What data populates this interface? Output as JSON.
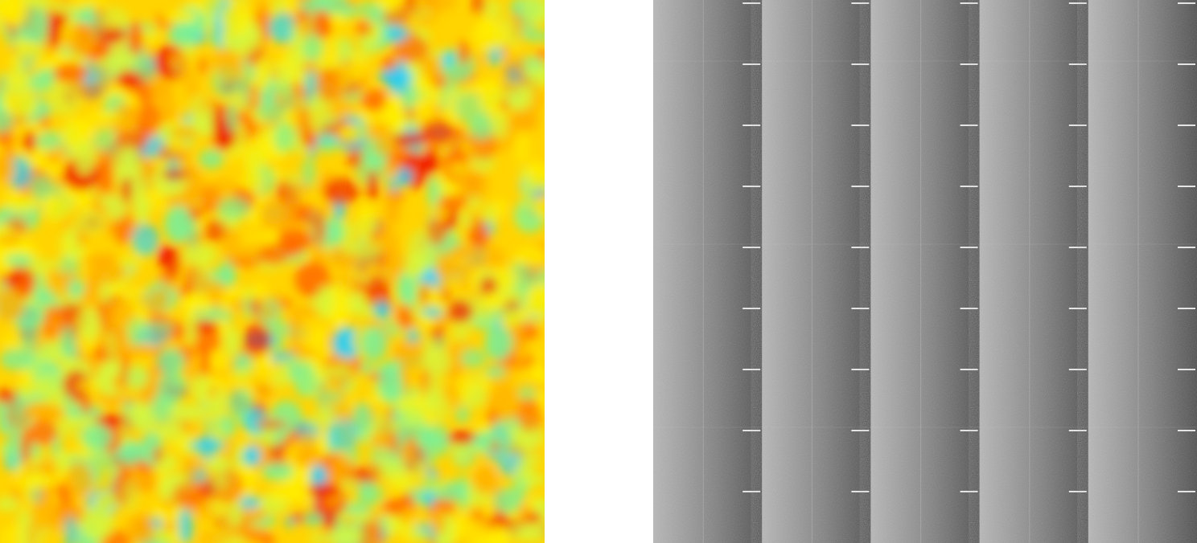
{
  "scene": {
    "left_image": {
      "kind": "heatmap",
      "colormap": [
        "#21d0ff",
        "#79f09a",
        "#d7f53d",
        "#ffef00",
        "#ffb000",
        "#ff6a00",
        "#f01000"
      ]
    },
    "right_image": {
      "kind": "grayscale-strips",
      "strip_count": 5,
      "light_tone": "#b8b8b8",
      "dark_tone": "#4d4d4d",
      "tick_tone": "#f2f2f2"
    }
  }
}
